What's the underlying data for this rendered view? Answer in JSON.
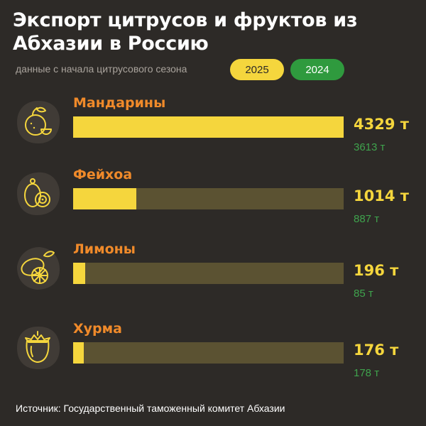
{
  "title": "Экспорт цитрусов и фруктов из Абхазии в Россию",
  "subtitle": "данные с начала цитрусового сезона",
  "legend": {
    "y2025": "2025",
    "y2024": "2024",
    "color_2025": "#f5d63d",
    "color_2024": "#2f9a3e"
  },
  "rows": [
    {
      "name": "Мандарины",
      "label_2025": "4329 т",
      "label_2024": "3613 т",
      "icon": "mandarin-icon"
    },
    {
      "name": "Фейхоа",
      "label_2025": "1014 т",
      "label_2024": "887 т",
      "icon": "feijoa-icon"
    },
    {
      "name": "Лимоны",
      "label_2025": "196 т",
      "label_2024": "85 т",
      "icon": "lemon-icon"
    },
    {
      "name": "Хурма",
      "label_2025": "176 т",
      "label_2024": "178 т",
      "icon": "persimmon-icon"
    }
  ],
  "source": "Источник: Государственный таможенный комитет Абхазии",
  "chart_data": {
    "type": "bar",
    "categories": [
      "Мандарины",
      "Фейхоа",
      "Лимоны",
      "Хурма"
    ],
    "series": [
      {
        "name": "2025",
        "values": [
          4329,
          1014,
          196,
          176
        ]
      },
      {
        "name": "2024",
        "values": [
          3613,
          887,
          85,
          178
        ]
      }
    ],
    "unit": "т"
  }
}
